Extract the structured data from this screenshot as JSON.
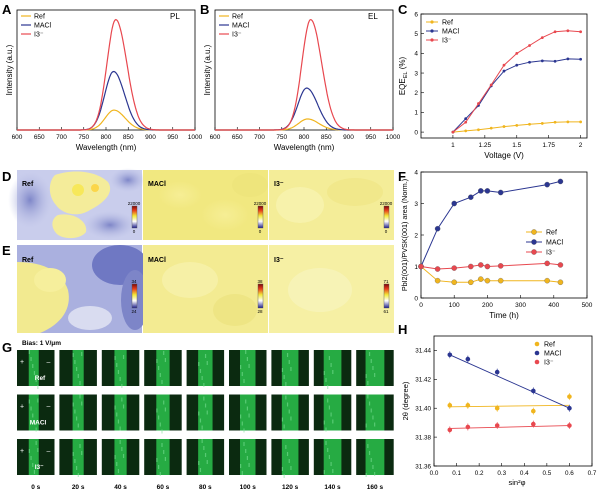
{
  "colors": {
    "ref": "#f0b51e",
    "maci": "#2b3691",
    "i3": "#e8484f",
    "map_yellow": "#f3ea8a",
    "green_dark": "#0b2a10",
    "green_bright": "#2bc24c"
  },
  "panels": {
    "A": {
      "letter": "A",
      "tag": "PL"
    },
    "B": {
      "letter": "B",
      "tag": "EL"
    },
    "C": {
      "letter": "C"
    },
    "D": {
      "letter": "D",
      "maps": [
        {
          "label": "Ref",
          "cb_max": "22000",
          "cb_min": "0"
        },
        {
          "label": "MACl",
          "cb_max": "22000",
          "cb_min": "0"
        },
        {
          "label": "I3⁻",
          "cb_max": "22000",
          "cb_min": "0"
        }
      ]
    },
    "E": {
      "letter": "E",
      "maps": [
        {
          "label": "Ref",
          "cb_max": "34",
          "cb_min": "24"
        },
        {
          "label": "MACl",
          "cb_max": "38",
          "cb_min": "28"
        },
        {
          "label": "I3⁻",
          "cb_max": "71",
          "cb_min": "61"
        }
      ]
    },
    "F": {
      "letter": "F"
    },
    "G": {
      "letter": "G",
      "bias": "Bias: 1 V/μm",
      "row_labels": [
        "Ref",
        "MACl",
        "I3⁻"
      ],
      "plus": "+",
      "minus": "–",
      "times": [
        "0 s",
        "20 s",
        "40 s",
        "60 s",
        "80 s",
        "100 s",
        "120 s",
        "140 s",
        "160 s"
      ]
    },
    "H": {
      "letter": "H"
    }
  },
  "chart_data": [
    {
      "id": "A",
      "type": "line",
      "xlabel": "Wavelength (nm)",
      "ylabel": "Intensity (a.u.)",
      "xlim": [
        600,
        1000
      ],
      "xticks": [
        "600",
        "650",
        "700",
        "750",
        "800",
        "850",
        "900",
        "950",
        "1000"
      ],
      "legend": "top-left",
      "series": [
        {
          "name": "Ref",
          "peak_x": 818,
          "amplitude": 0.18
        },
        {
          "name": "MACl",
          "peak_x": 817,
          "amplitude": 0.53
        },
        {
          "name": "I3⁻",
          "peak_x": 822,
          "amplitude": 1.0
        }
      ]
    },
    {
      "id": "B",
      "type": "line",
      "xlabel": "Wavelength (nm)",
      "ylabel": "Intensity (a.u.)",
      "xlim": [
        600,
        1000
      ],
      "xticks": [
        "600",
        "650",
        "700",
        "750",
        "800",
        "850",
        "900",
        "950",
        "1000"
      ],
      "legend": "top-left",
      "series": [
        {
          "name": "Ref",
          "peak_x": 808,
          "amplitude": 0.1
        },
        {
          "name": "MACl",
          "peak_x": 806,
          "amplitude": 0.38
        },
        {
          "name": "I3⁻",
          "peak_x": 815,
          "amplitude": 1.0
        }
      ]
    },
    {
      "id": "C",
      "type": "line",
      "xlabel": "Voltage (V)",
      "ylabel": "EQE_EL (%)",
      "xlim": [
        0.75,
        2.05
      ],
      "ylim": [
        -0.3,
        6
      ],
      "xticks": [
        1,
        1.25,
        1.5,
        1.75,
        2
      ],
      "yticks": [
        0,
        1,
        2,
        3,
        4,
        5,
        6
      ],
      "legend": "top-left",
      "series": [
        {
          "name": "Ref",
          "x": [
            1.0,
            1.1,
            1.2,
            1.3,
            1.4,
            1.5,
            1.6,
            1.7,
            1.8,
            1.9,
            2.0
          ],
          "y": [
            0.0,
            0.06,
            0.12,
            0.2,
            0.28,
            0.34,
            0.4,
            0.44,
            0.5,
            0.52,
            0.52
          ]
        },
        {
          "name": "MACl",
          "x": [
            1.0,
            1.1,
            1.2,
            1.3,
            1.4,
            1.5,
            1.6,
            1.7,
            1.8,
            1.9,
            2.0
          ],
          "y": [
            0.0,
            0.68,
            1.35,
            2.35,
            3.1,
            3.4,
            3.55,
            3.62,
            3.6,
            3.72,
            3.7
          ]
        },
        {
          "name": "I3⁻",
          "x": [
            1.0,
            1.1,
            1.2,
            1.3,
            1.4,
            1.5,
            1.6,
            1.7,
            1.8,
            1.9,
            2.0
          ],
          "y": [
            0.0,
            0.5,
            1.45,
            2.4,
            3.4,
            4.0,
            4.4,
            4.8,
            5.1,
            5.15,
            5.1
          ]
        }
      ]
    },
    {
      "id": "F",
      "type": "line",
      "xlabel": "Time (h)",
      "ylabel": "PbI2(001)/PVSK(001) area (Norm.)",
      "xlim": [
        0,
        500
      ],
      "ylim": [
        0,
        4
      ],
      "xticks": [
        0,
        100,
        200,
        300,
        400,
        500
      ],
      "yticks": [
        0,
        1,
        2,
        3,
        4
      ],
      "legend": "right",
      "series": [
        {
          "name": "Ref",
          "x": [
            0,
            50,
            100,
            150,
            180,
            200,
            240,
            380,
            420
          ],
          "y": [
            1.0,
            0.55,
            0.5,
            0.5,
            0.6,
            0.55,
            0.55,
            0.55,
            0.5
          ]
        },
        {
          "name": "MACl",
          "x": [
            0,
            50,
            100,
            150,
            180,
            200,
            240,
            380,
            420
          ],
          "y": [
            1.0,
            2.2,
            3.0,
            3.2,
            3.4,
            3.4,
            3.35,
            3.6,
            3.7
          ]
        },
        {
          "name": "I3⁻",
          "x": [
            0,
            50,
            100,
            150,
            180,
            200,
            240,
            380,
            420
          ],
          "y": [
            1.0,
            0.92,
            0.95,
            1.0,
            1.05,
            1.0,
            1.02,
            1.1,
            1.05
          ]
        }
      ]
    },
    {
      "id": "H",
      "type": "scatter",
      "xlabel": "sin²φ",
      "ylabel": "2θ (degree)",
      "xlim": [
        0.0,
        0.7
      ],
      "ylim": [
        31.36,
        31.45
      ],
      "xticks": [
        "0.0",
        "0.1",
        "0.2",
        "0.3",
        "0.4",
        "0.5",
        "0.6",
        "0.7"
      ],
      "yticks": [
        "31.36",
        "31.38",
        "31.40",
        "31.42",
        "31.44"
      ],
      "legend": "top-right",
      "series": [
        {
          "name": "Ref",
          "x": [
            0.07,
            0.15,
            0.28,
            0.44,
            0.6
          ],
          "y": [
            31.402,
            31.402,
            31.4,
            31.398,
            31.408
          ],
          "fit": [
            [
              0.07,
              31.401
            ],
            [
              0.6,
              31.402
            ]
          ]
        },
        {
          "name": "MACl",
          "x": [
            0.07,
            0.15,
            0.28,
            0.44,
            0.6
          ],
          "y": [
            31.437,
            31.434,
            31.425,
            31.412,
            31.4
          ],
          "fit": [
            [
              0.07,
              31.437
            ],
            [
              0.6,
              31.4
            ]
          ]
        },
        {
          "name": "I3⁻",
          "x": [
            0.07,
            0.15,
            0.28,
            0.44,
            0.6
          ],
          "y": [
            31.385,
            31.387,
            31.388,
            31.389,
            31.388
          ],
          "fit": [
            [
              0.07,
              31.386
            ],
            [
              0.6,
              31.388
            ]
          ]
        }
      ]
    }
  ]
}
